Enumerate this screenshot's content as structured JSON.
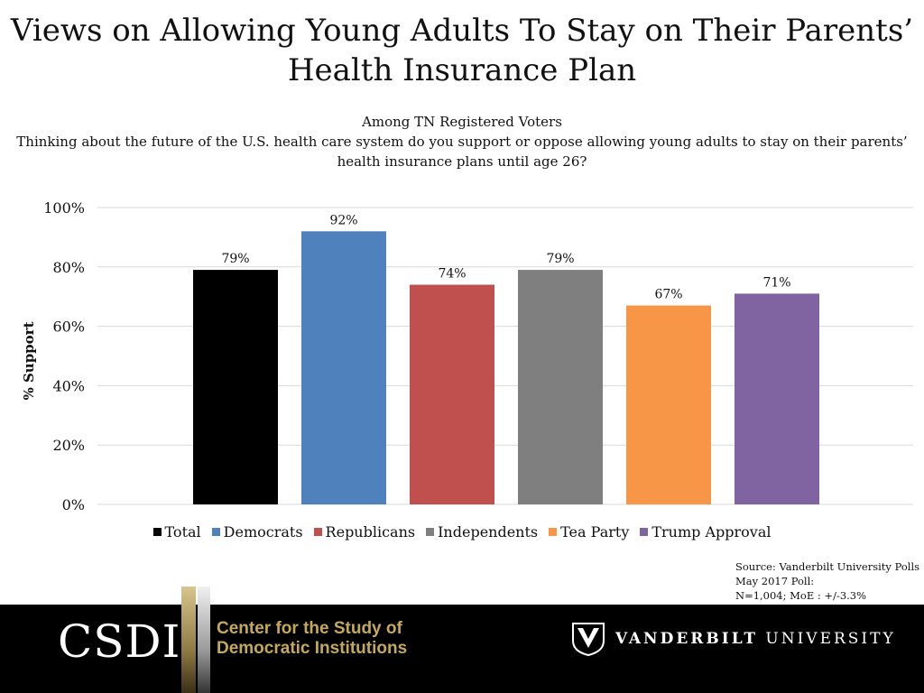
{
  "title": {
    "line1": "Views on Allowing Young Adults To Stay on Their Parents’",
    "line2": "Health Insurance Plan"
  },
  "subtitle": {
    "line1": "Among TN Registered Voters",
    "question": "Thinking about the future of the U.S. health care system do you support or oppose allowing young adults to stay on their parents’ health insurance plans until age 26?"
  },
  "chart_data": {
    "type": "bar",
    "categories": [
      "Total",
      "Democrats",
      "Republicans",
      "Independents",
      "Tea Party",
      "Trump Approval"
    ],
    "values": [
      79,
      92,
      74,
      79,
      67,
      71
    ],
    "value_labels": [
      "79%",
      "92%",
      "74%",
      "79%",
      "67%",
      "71%"
    ],
    "colors": [
      "#000000",
      "#4f81bd",
      "#c0504d",
      "#7f7f7f",
      "#f79646",
      "#8064a2"
    ],
    "ylabel": "% Support",
    "xlabel": "",
    "ylim": [
      0,
      100
    ],
    "yticks": [
      0,
      20,
      40,
      60,
      80,
      100
    ],
    "ytick_labels": [
      "0%",
      "20%",
      "40%",
      "60%",
      "80%",
      "100%"
    ],
    "grid": true,
    "legend_position": "bottom"
  },
  "source": {
    "line1": "Source: Vanderbilt University Polls",
    "line2": "May 2017 Poll:",
    "line3": "N=1,004; MoE : +/-3.3%"
  },
  "footer": {
    "csdi": "CSDI",
    "center_line1": "Center for the Study of",
    "center_line2": "Democratic Institutions",
    "vu_bold": "VANDERBILT",
    "vu_rest": "UNIVERSITY",
    "colors": {
      "background": "#000000",
      "gold": "#c5a95b"
    }
  }
}
